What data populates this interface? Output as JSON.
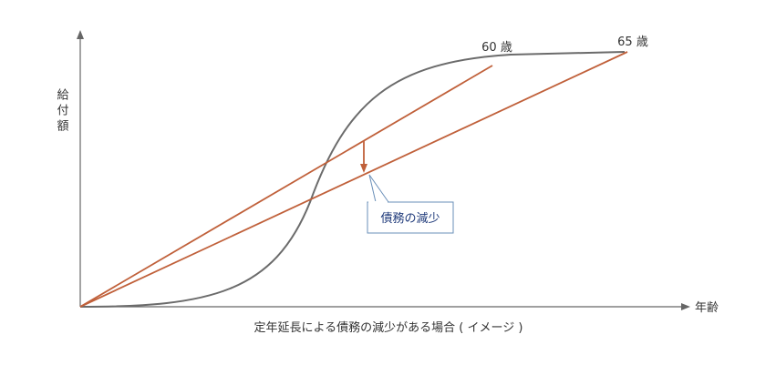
{
  "y_axis_label": "給付額",
  "x_axis_label": "年齢",
  "line_labels": [
    "60 歳",
    "65 歳"
  ],
  "callout": "債務の減少",
  "caption": "定年延長による債務の減少がある場合 ( イメージ )"
}
